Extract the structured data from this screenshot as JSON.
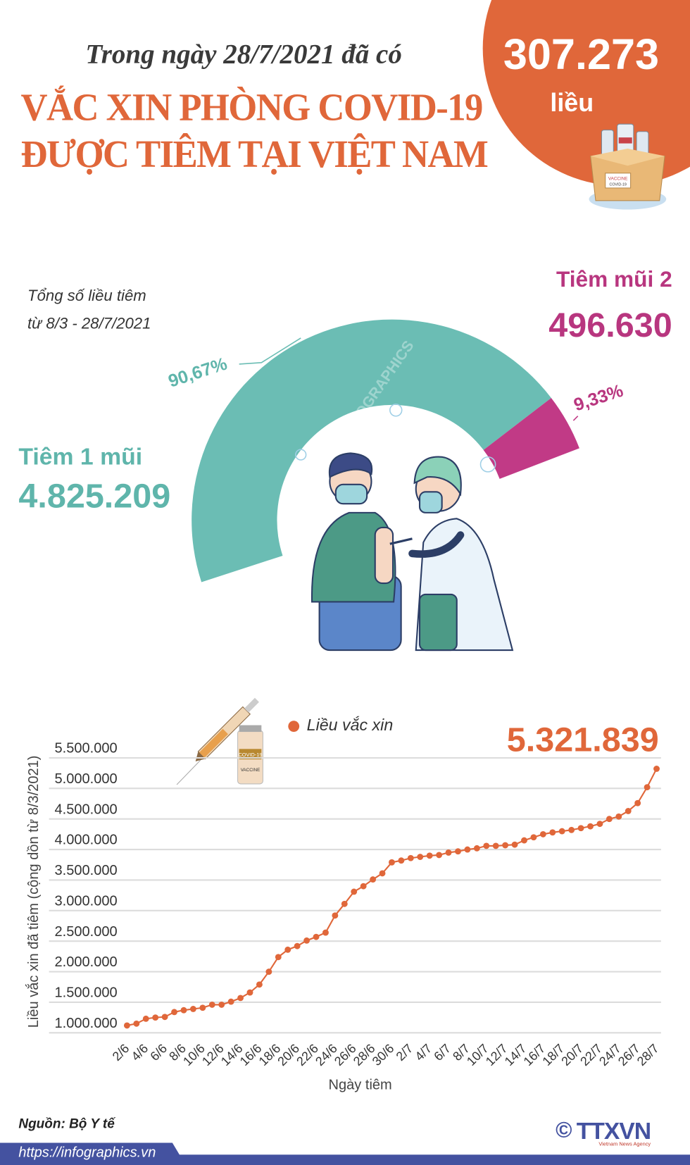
{
  "header": {
    "intro": "Trong ngày 28/7/2021 đã có",
    "daily_doses": "307.273",
    "daily_unit": "liều",
    "title_line1": "VẮC XIN PHÒNG COVID-19",
    "title_line2": "ĐƯỢC TIÊM TẠI VIỆT NAM",
    "box_label": "VACCINE COVID-19"
  },
  "summary": {
    "caption_line1": "Tổng số liều tiêm",
    "caption_line2": "từ 8/3 - 28/7/2021",
    "dose1_label": "Tiêm 1 mũi",
    "dose1_value": "4.825.209",
    "dose1_pct": "90,67%",
    "dose1_share": 90.67,
    "dose2_label": "Tiêm mũi 2",
    "dose2_value": "496.630",
    "dose2_pct": "9,33%",
    "dose2_share": 9.33,
    "watermark": "INFOGRAPHICS"
  },
  "colors": {
    "orange": "#e0673a",
    "teal": "#6bbdb4",
    "magenta": "#c13a86",
    "navy": "#4452a0"
  },
  "chart_data": {
    "type": "line",
    "title": "",
    "legend": "Liều vắc xin",
    "highlight_value": "5.321.839",
    "xlabel": "Ngày tiêm",
    "ylabel": "Liều vắc xin đã tiêm (cộng dồn từ 8/3/2021)",
    "ylim": [
      1000000,
      5500000
    ],
    "y_ticks": [
      1000000,
      1500000,
      2000000,
      2500000,
      3000000,
      3500000,
      4000000,
      4500000,
      5000000,
      5500000
    ],
    "y_tick_labels": [
      "1.000.000",
      "1.500.000",
      "2.000.000",
      "2.500.000",
      "3.000.000",
      "3.500.000",
      "4.000.000",
      "4.500.000",
      "5.000.000",
      "5.500.000"
    ],
    "x_tick_labels": [
      "2/6",
      "4/6",
      "6/6",
      "8/6",
      "10/6",
      "12/6",
      "14/6",
      "16/6",
      "18/6",
      "20/6",
      "22/6",
      "24/6",
      "26/6",
      "28/6",
      "30/6",
      "2/7",
      "4/7",
      "6/7",
      "8/7",
      "10/7",
      "12/7",
      "14/7",
      "16/7",
      "18/7",
      "20/7",
      "22/7",
      "24/7",
      "26/7",
      "28/7"
    ],
    "x": [
      "2/6",
      "3/6",
      "4/6",
      "5/6",
      "6/6",
      "7/6",
      "8/6",
      "9/6",
      "10/6",
      "11/6",
      "12/6",
      "13/6",
      "14/6",
      "15/6",
      "16/6",
      "17/6",
      "18/6",
      "19/6",
      "20/6",
      "21/6",
      "22/6",
      "23/6",
      "24/6",
      "25/6",
      "26/6",
      "27/6",
      "28/6",
      "29/6",
      "30/6",
      "1/7",
      "2/7",
      "3/7",
      "4/7",
      "5/7",
      "6/7",
      "7/7",
      "8/7",
      "9/7",
      "10/7",
      "11/7",
      "12/7",
      "13/7",
      "14/7",
      "15/7",
      "16/7",
      "17/7",
      "18/7",
      "19/7",
      "20/7",
      "21/7",
      "22/7",
      "23/7",
      "24/7",
      "25/7",
      "26/7",
      "27/7",
      "28/7"
    ],
    "y": [
      1120000,
      1150000,
      1230000,
      1250000,
      1260000,
      1340000,
      1370000,
      1390000,
      1410000,
      1460000,
      1460000,
      1510000,
      1570000,
      1660000,
      1790000,
      2000000,
      2240000,
      2360000,
      2420000,
      2510000,
      2570000,
      2640000,
      2920000,
      3110000,
      3310000,
      3400000,
      3510000,
      3610000,
      3790000,
      3820000,
      3860000,
      3880000,
      3900000,
      3910000,
      3950000,
      3970000,
      4000000,
      4020000,
      4060000,
      4060000,
      4070000,
      4080000,
      4150000,
      4200000,
      4250000,
      4280000,
      4300000,
      4320000,
      4350000,
      4380000,
      4420000,
      4500000,
      4540000,
      4630000,
      4760000,
      5020000,
      5321839
    ],
    "grid": true,
    "legend_position": "top-center"
  },
  "footer": {
    "source": "Nguồn: Bộ Y tế",
    "url": "https://infographics.vn",
    "logo_text": "TTXVN",
    "logo_sub": "Vietnam News Agency",
    "copyright": "©"
  }
}
